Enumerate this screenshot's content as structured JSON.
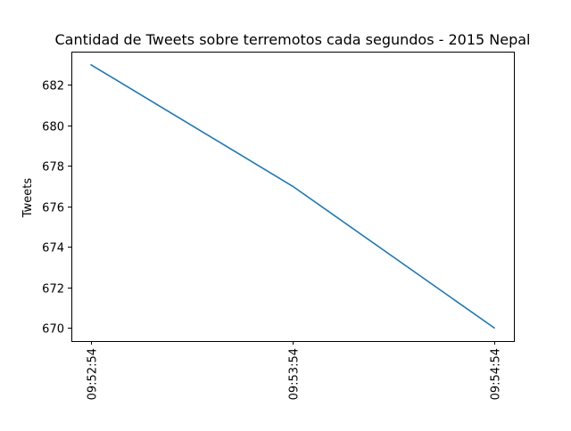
{
  "chart_data": {
    "type": "line",
    "title": "Cantidad de Tweets sobre terremotos cada  segundos - 2015 Nepal",
    "xlabel": "",
    "ylabel": "Tweets",
    "x": [
      "09:52:54",
      "09:53:54",
      "09:54:54"
    ],
    "series": [
      {
        "values": [
          683,
          677,
          670
        ],
        "color": "#1f77b4"
      }
    ],
    "yticks": [
      670,
      672,
      674,
      676,
      678,
      680,
      682
    ],
    "ylim": [
      669.35,
      683.65
    ],
    "grid": false,
    "legend": "none"
  }
}
